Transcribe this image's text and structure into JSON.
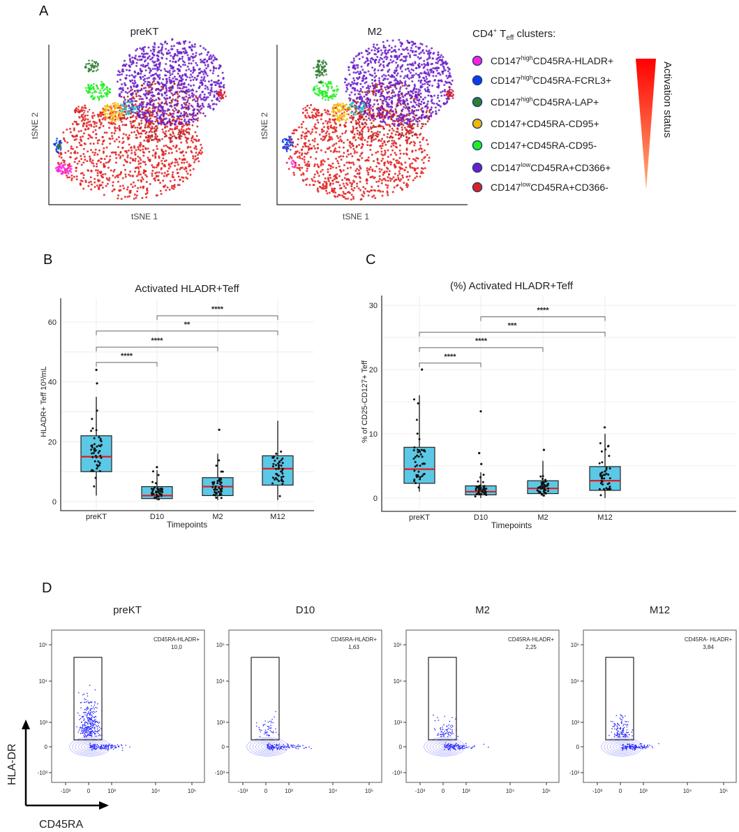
{
  "panel_labels": {
    "a": "A",
    "b": "B",
    "c": "C",
    "d": "D"
  },
  "tsne": {
    "panels": [
      {
        "title": "preKT"
      },
      {
        "title": "M2"
      }
    ],
    "xlabel": "tSNE 1",
    "ylabel": "tSNE 2"
  },
  "legend": {
    "title": {
      "main": "CD4",
      "sup": "+",
      "t": " T",
      "sub": "eff",
      "rest": " clusters:"
    },
    "items": [
      {
        "base": "CD147",
        "sup": "high",
        "rest": "CD45RA-HLADR+",
        "color": "#ff22dd"
      },
      {
        "base": "CD147",
        "sup": "high",
        "rest": "CD45RA-FCRL3+",
        "color": "#0a3cf0"
      },
      {
        "base": "CD147",
        "sup": "high",
        "rest": "CD45RA-LAP+",
        "color": "#2e7d32"
      },
      {
        "base": "CD147+CD45RA-CD95+",
        "sup": "",
        "rest": "",
        "color": "#f7b500"
      },
      {
        "base": "CD147+CD45RA-CD95-",
        "sup": "",
        "rest": "",
        "color": "#22ee22"
      },
      {
        "base": "CD147",
        "sup": "low",
        "rest": "CD45RA+CD366+",
        "color": "#6a1fc8"
      },
      {
        "base": "CD147",
        "sup": "low",
        "rest": "CD45RA+CD366-",
        "color": "#e02020"
      }
    ],
    "gradient_label": "Activation status",
    "gradient_colors": [
      "#ff0000",
      "#ffb277"
    ]
  },
  "chart_data": [
    {
      "type": "box",
      "title": "Activated HLADR+Teff",
      "xlabel": "Timepoints",
      "ylabel": "HLADR+ Teff  10³/mL",
      "categories": [
        "preKT",
        "D10",
        "M2",
        "M12"
      ],
      "ylim": [
        -3,
        68
      ],
      "yticks": [
        0,
        20,
        40,
        60
      ],
      "grid": true,
      "box_color": "#5bc8e6",
      "median_color": "#e41a1c",
      "boxes": [
        {
          "min": 2,
          "q1": 10,
          "median": 15,
          "q3": 22,
          "max": 35,
          "outliers": [
            39.5,
            44
          ]
        },
        {
          "min": 0.5,
          "q1": 1,
          "median": 2,
          "q3": 5,
          "max": 10.5,
          "outliers": [
            11.5
          ]
        },
        {
          "min": 0.5,
          "q1": 2,
          "median": 5,
          "q3": 8,
          "max": 16,
          "outliers": [
            24
          ]
        },
        {
          "min": 0.5,
          "q1": 5.5,
          "median": 11,
          "q3": 15.3,
          "max": 27,
          "outliers": []
        }
      ],
      "significance": [
        {
          "from": "preKT",
          "to": "D10",
          "label": "****"
        },
        {
          "from": "preKT",
          "to": "M2",
          "label": "****"
        },
        {
          "from": "preKT",
          "to": "M12",
          "label": "**"
        },
        {
          "from": "D10",
          "to": "M12",
          "label": "****"
        }
      ]
    },
    {
      "type": "box",
      "title": "(%) Activated HLADR+Teff",
      "xlabel": "Timepoints",
      "ylabel": "% of CD25-CD127+ Teff",
      "categories": [
        "preKT",
        "D10",
        "M2",
        "M12"
      ],
      "ylim": [
        -2,
        31
      ],
      "yticks": [
        0,
        10,
        20,
        30
      ],
      "grid": true,
      "box_color": "#5bc8e6",
      "median_color": "#e41a1c",
      "boxes": [
        {
          "min": 1,
          "q1": 2.3,
          "median": 4.5,
          "q3": 7.9,
          "max": 16,
          "outliers": [
            20
          ]
        },
        {
          "min": 0,
          "q1": 0.5,
          "median": 1,
          "q3": 1.9,
          "max": 4,
          "outliers": [
            5.3,
            7,
            13.5
          ]
        },
        {
          "min": 0.3,
          "q1": 0.7,
          "median": 1.5,
          "q3": 2.7,
          "max": 5.8,
          "outliers": [
            7.5
          ]
        },
        {
          "min": 0,
          "q1": 1.2,
          "median": 2.7,
          "q3": 4.9,
          "max": 10,
          "outliers": [
            11
          ]
        }
      ],
      "significance": [
        {
          "from": "preKT",
          "to": "D10",
          "label": "****"
        },
        {
          "from": "preKT",
          "to": "M2",
          "label": "****"
        },
        {
          "from": "preKT",
          "to": "M12",
          "label": "***"
        },
        {
          "from": "D10",
          "to": "M12",
          "label": "****"
        }
      ]
    }
  ],
  "flow": {
    "panels": [
      {
        "title": "preKT",
        "gate_label": "CD45RA-HLADR+",
        "gate_value": "10,0"
      },
      {
        "title": "D10",
        "gate_label": "CD45RA-HLADR+",
        "gate_value": "1,63"
      },
      {
        "title": "M2",
        "gate_label": "CD45RA-HLADR+",
        "gate_value": "2,25"
      },
      {
        "title": "M12",
        "gate_label": "CD45RA- HLADR+",
        "gate_value": "3,84"
      }
    ],
    "y_ticks": [
      "10⁵",
      "10⁴",
      "10³",
      "0",
      "-10³"
    ],
    "x_ticks": [
      "-10³",
      "0",
      "10³",
      "10⁴",
      "10⁵"
    ],
    "ylabel": "HLA-DR",
    "xlabel": "CD45RA",
    "dot_color": "#2a2aff"
  }
}
